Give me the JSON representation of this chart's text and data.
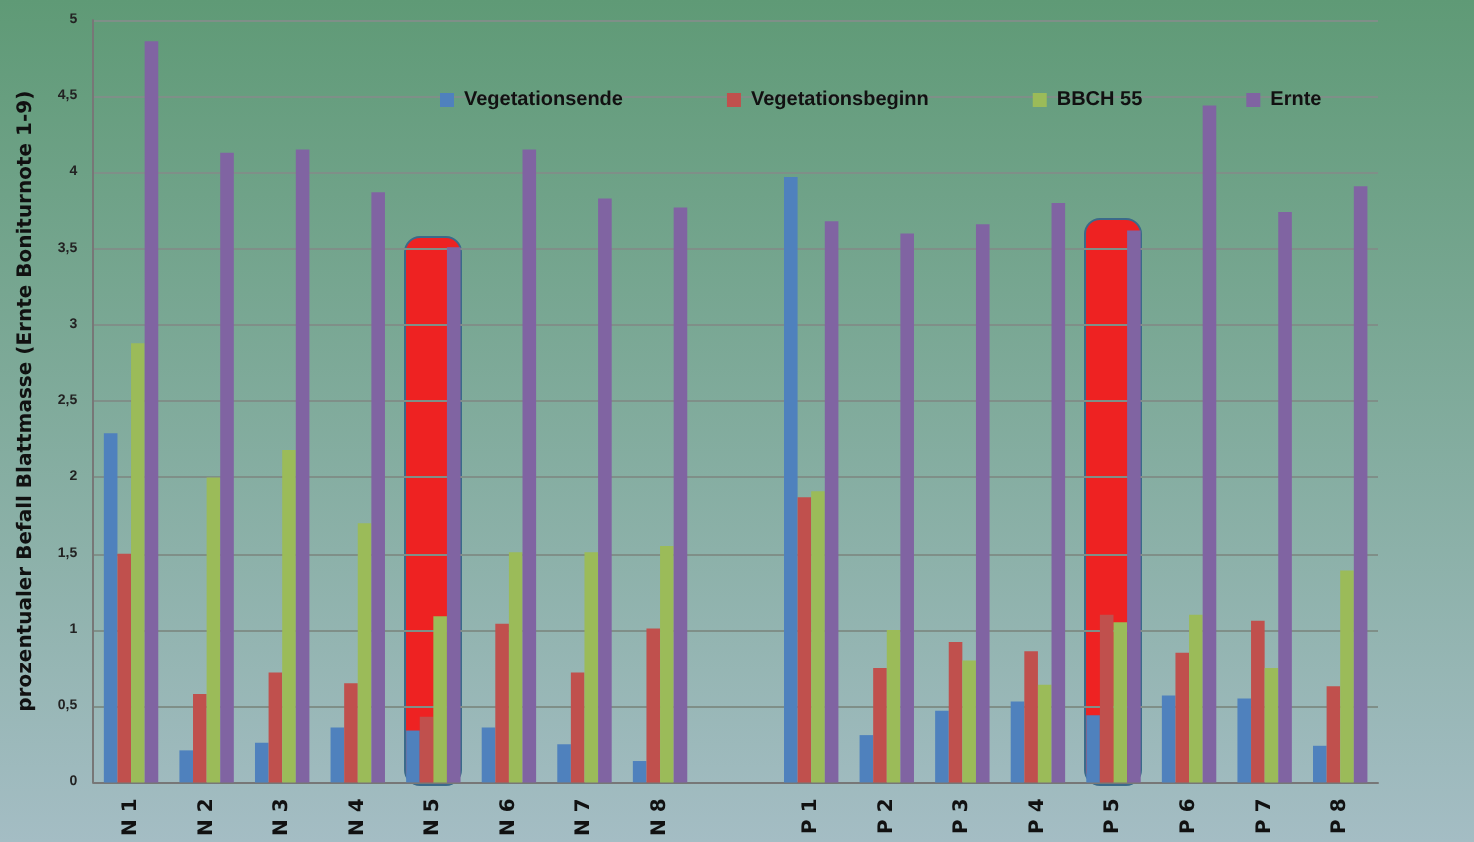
{
  "chart_data": {
    "type": "bar",
    "ylabel": "prozentualer Befall Blattmasse (Ernte Boniturnote 1-9)",
    "categories": [
      "N 1",
      "N 2",
      "N 3",
      "N 4",
      "N 5",
      "N 6",
      "N 7",
      "N 8",
      null,
      "P 1",
      "P 2",
      "P 3",
      "P 4",
      "P 5",
      "P 6",
      "P 7",
      "P 8"
    ],
    "series": [
      {
        "name": "Vegetationsende",
        "color": "#4f81bd",
        "values": [
          2.29,
          0.21,
          0.26,
          0.36,
          0.34,
          0.36,
          0.25,
          0.14,
          null,
          3.97,
          0.31,
          0.47,
          0.53,
          0.44,
          0.57,
          0.55,
          0.24
        ]
      },
      {
        "name": "Vegetationsbeginn",
        "color": "#c0504d",
        "values": [
          1.5,
          0.58,
          0.72,
          0.65,
          0.43,
          1.04,
          0.72,
          1.01,
          null,
          1.87,
          0.75,
          0.92,
          0.86,
          1.1,
          0.85,
          1.06,
          0.63
        ]
      },
      {
        "name": "BBCH 55",
        "color": "#9bbb59",
        "values": [
          2.88,
          2.0,
          2.18,
          1.7,
          1.09,
          1.51,
          1.51,
          1.55,
          null,
          1.91,
          1.0,
          0.8,
          0.64,
          1.05,
          1.1,
          0.75,
          1.39
        ]
      },
      {
        "name": "Ernte",
        "color": "#8064a2",
        "values": [
          4.86,
          4.13,
          4.15,
          3.87,
          3.51,
          4.15,
          3.83,
          3.77,
          null,
          3.68,
          3.6,
          3.66,
          3.8,
          3.62,
          4.44,
          3.74,
          3.91
        ]
      }
    ],
    "ylim": [
      0,
      5
    ],
    "yticks": [
      0,
      {
        "value": 0.5,
        "label": "0,5"
      },
      1,
      {
        "value": 1.5,
        "label": "1,5"
      },
      2,
      {
        "value": 2.5,
        "label": "2,5"
      },
      3,
      {
        "value": 3.5,
        "label": "3,5"
      },
      4,
      {
        "value": 4.5,
        "label": "4,5"
      },
      5
    ],
    "bands": [
      {
        "axis": "x",
        "from": "N 5",
        "to": "N 5",
        "color": "#ee2222"
      },
      {
        "axis": "x",
        "from": "P 5",
        "to": "P 5",
        "color": "#ee2222"
      }
    ],
    "grid": "y",
    "legend": "top"
  }
}
